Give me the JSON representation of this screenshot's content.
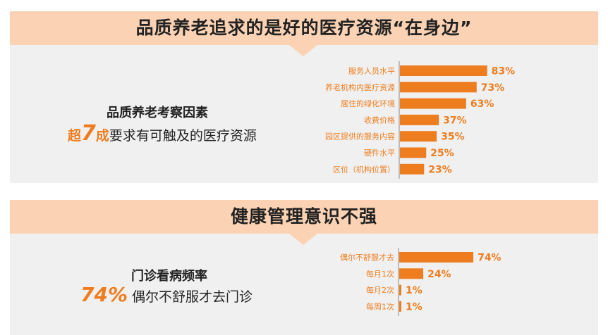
{
  "section1": {
    "banner_title": "品质养老追求的是好的医疗资源“在身边”",
    "left_title": "品质养老考察因素",
    "left_prefix": "超",
    "left_number": "7",
    "left_suffix": "成",
    "left_text": "要求有可触及的医疗资源"
  },
  "section2": {
    "banner_title": "健康管理意识不强",
    "left_title": "门诊看病频率",
    "left_number": "74%",
    "left_text": "偶尔不舒服才去门诊"
  },
  "colors": {
    "accent": "#ee7d1f",
    "banner": "#fbd3b4",
    "panel": "#f0f0f0"
  },
  "chart_data": [
    {
      "type": "bar",
      "orientation": "horizontal",
      "categories": [
        "服务人员水平",
        "养老机构内医疗资源",
        "居住的绿化环境",
        "收费价格",
        "园区提供的服务内容",
        "硬件水平",
        "区位（机构位置）"
      ],
      "values": [
        83,
        73,
        63,
        37,
        35,
        25,
        23
      ],
      "data_labels": [
        "83%",
        "73%",
        "63%",
        "37%",
        "35%",
        "25%",
        "23%"
      ],
      "unit": "%",
      "xlim": [
        0,
        100
      ],
      "grid": false
    },
    {
      "type": "bar",
      "orientation": "horizontal",
      "categories": [
        "偶尔不舒服才去",
        "每月1次",
        "每月2次",
        "每周1次"
      ],
      "values": [
        74,
        24,
        1,
        1
      ],
      "data_labels": [
        "74%",
        "24%",
        "1%",
        "1%"
      ],
      "unit": "%",
      "xlim": [
        0,
        100
      ],
      "grid": false
    }
  ]
}
